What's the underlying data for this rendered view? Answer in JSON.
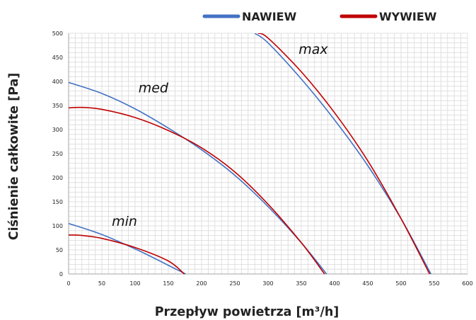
{
  "chart_data": {
    "type": "line",
    "xlabel": "Przepływ powietrza [m³/h]",
    "ylabel": "Ciśnienie całkowite [Pa]",
    "xlim": [
      0,
      600
    ],
    "ylim": [
      0,
      500
    ],
    "x_ticks": [
      0,
      50,
      100,
      150,
      200,
      250,
      300,
      350,
      400,
      450,
      500,
      550,
      600
    ],
    "y_ticks": [
      0,
      50,
      100,
      150,
      200,
      250,
      300,
      350,
      400,
      450,
      500
    ],
    "grid": true,
    "legend_position": "top-right",
    "series": [
      {
        "name": "NAWIEW",
        "color": "#4472c4",
        "curves": [
          {
            "level": "max",
            "x": [
              280,
              300,
              350,
              400,
              450,
              500,
              545
            ],
            "y": [
              500,
              480,
              405,
              320,
              225,
              115,
              0
            ]
          },
          {
            "level": "med",
            "x": [
              0,
              50,
              100,
              150,
              200,
              250,
              300,
              350,
              388
            ],
            "y": [
              398,
              375,
              343,
              303,
              258,
              205,
              140,
              65,
              0
            ]
          },
          {
            "level": "min",
            "x": [
              0,
              50,
              100,
              130,
              150,
              176
            ],
            "y": [
              105,
              82,
              52,
              32,
              18,
              0
            ]
          }
        ]
      },
      {
        "name": "WYWIEW",
        "color": "#c00000",
        "curves": [
          {
            "level": "max",
            "x": [
              285,
              300,
              350,
              400,
              450,
              500,
              543
            ],
            "y": [
              500,
              490,
              420,
              335,
              235,
              115,
              0
            ]
          },
          {
            "level": "med",
            "x": [
              0,
              20,
              50,
              100,
              150,
              200,
              250,
              300,
              350,
              385
            ],
            "y": [
              345,
              346,
              342,
              325,
              298,
              262,
              212,
              145,
              65,
              0
            ]
          },
          {
            "level": "min",
            "x": [
              0,
              20,
              50,
              100,
              150,
              174
            ],
            "y": [
              81,
              80,
              74,
              55,
              27,
              0
            ]
          }
        ]
      }
    ],
    "annotations": [
      {
        "text": "max",
        "x": 346,
        "y": 457
      },
      {
        "text": "med",
        "x": 105,
        "y": 377
      },
      {
        "text": "min",
        "x": 65,
        "y": 100
      }
    ]
  }
}
